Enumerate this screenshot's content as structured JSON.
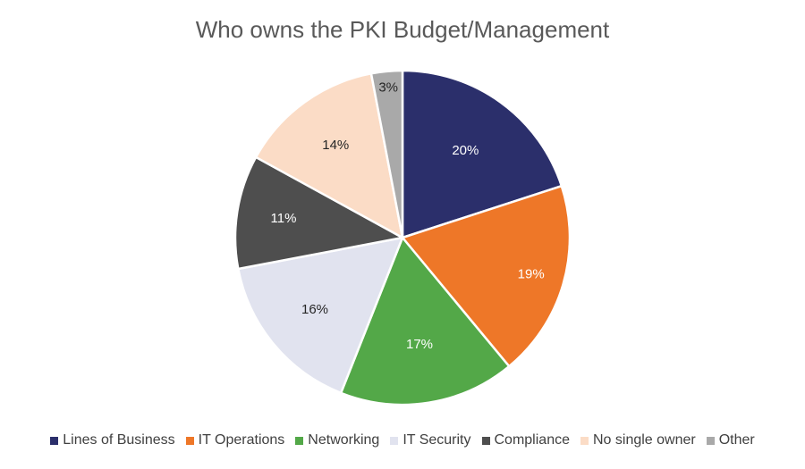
{
  "chart_data": {
    "type": "pie",
    "title": "Who owns the PKI Budget/Management",
    "categories": [
      "Lines of Business",
      "IT Operations",
      "Networking",
      "IT Security",
      "Compliance",
      "No single owner",
      "Other"
    ],
    "values": [
      20,
      19,
      17,
      16,
      11,
      14,
      3
    ],
    "labels": [
      "20%",
      "19%",
      "17%",
      "16%",
      "11%",
      "14%",
      "3%"
    ],
    "colors": [
      "#2b2f6b",
      "#ee7728",
      "#53a848",
      "#e1e3ef",
      "#4e4e4e",
      "#fbdcc6",
      "#a9a9a9"
    ],
    "label_colors": [
      "#ffffff",
      "#ffffff",
      "#ffffff",
      "#262626",
      "#ffffff",
      "#262626",
      "#262626"
    ],
    "legend_position": "bottom"
  }
}
